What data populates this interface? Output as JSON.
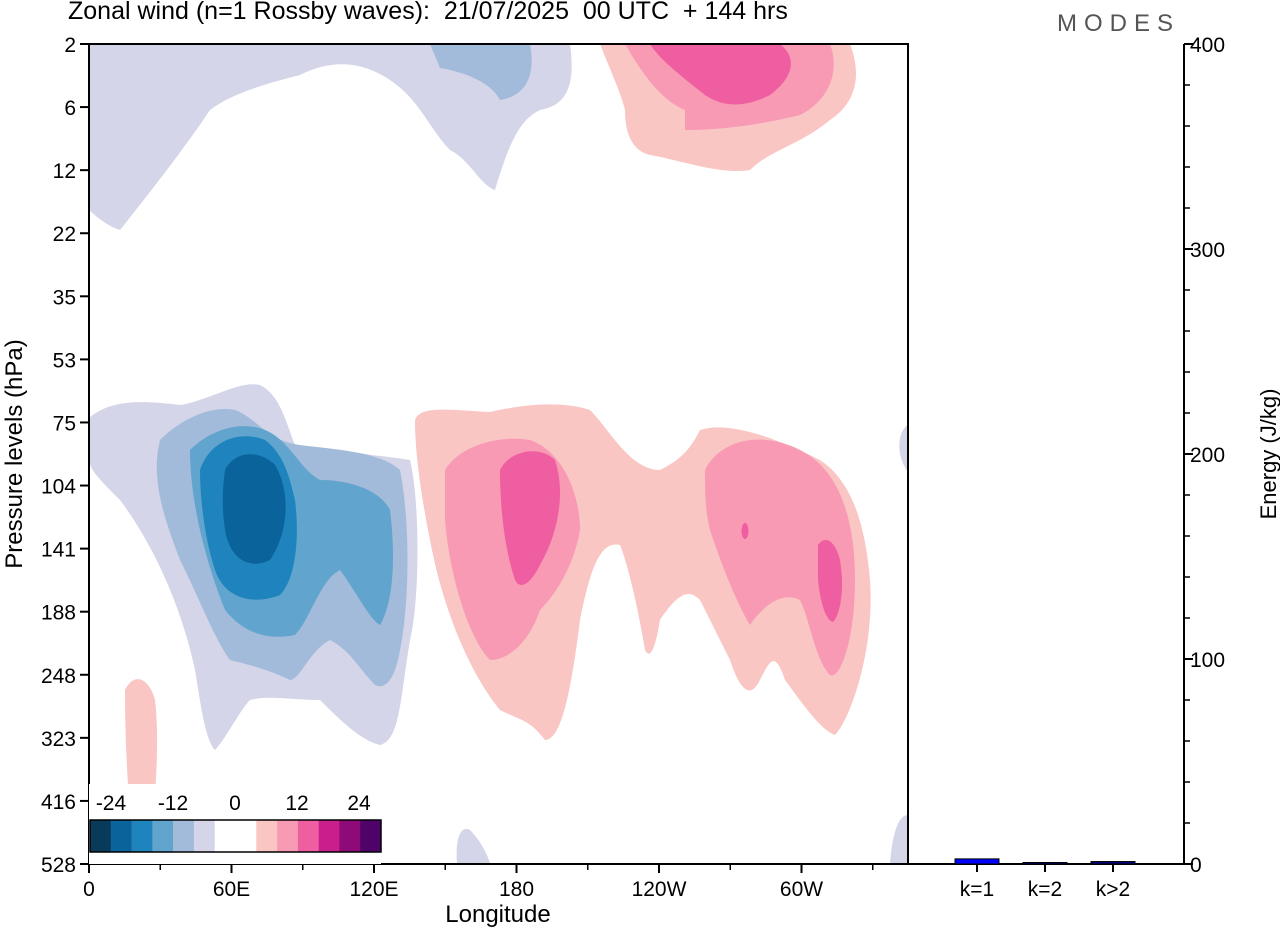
{
  "title": "Zonal wind (n=1 Rossby waves):  21/07/2025  00 UTC  + 144 hrs",
  "logo": "MODES",
  "chart_data": [
    {
      "type": "heatmap",
      "subtype": "filled-contour",
      "title": "Zonal wind (n=1 Rossby waves):  21/07/2025  00 UTC  + 144 hrs",
      "xlabel": "Longitude",
      "ylabel": "Pressure levels (hPa)",
      "x_ticks": [
        "0",
        "60E",
        "120E",
        "180",
        "120W",
        "60W"
      ],
      "y_ticks": [
        "2",
        "6",
        "12",
        "22",
        "35",
        "53",
        "75",
        "104",
        "141",
        "188",
        "248",
        "323",
        "416",
        "528"
      ],
      "colorbar": {
        "tick_labels": [
          "-24",
          "-12",
          "0",
          "12",
          "24"
        ],
        "levels": [
          -28,
          -24,
          -20,
          -16,
          -12,
          -8,
          -4,
          0,
          4,
          8,
          12,
          16,
          20,
          24,
          28
        ],
        "colors": [
          "#083a5a",
          "#0b639b",
          "#1f84bd",
          "#61a4cd",
          "#a3bbdb",
          "#d4d5e8",
          "#ffffff",
          "#ffffff",
          "#f9c6c3",
          "#f89ab4",
          "#ef5ea0",
          "#c91f8c",
          "#8f0a79",
          "#4f0368"
        ],
        "placement": "bottom-left"
      },
      "features": [
        {
          "name": "easterly core",
          "longitude": "~65E",
          "pressure": "104-141 hPa",
          "min_value": -20
        },
        {
          "name": "westerly core",
          "longitude": "~180-170W",
          "pressure": "104-141 hPa",
          "max_value": 12
        },
        {
          "name": "westerly core",
          "longitude": "~50W-30W",
          "pressure": "104-188 hPa",
          "max_value": 12
        },
        {
          "name": "upper westerly",
          "longitude": "~150W-100W",
          "pressure": "2-6 hPa",
          "max_value": 12
        },
        {
          "name": "upper easterly",
          "longitude": "0-160E",
          "pressure": "2-22 hPa",
          "min_value": -8
        }
      ]
    },
    {
      "type": "bar",
      "categories": [
        "k=1",
        "k=2",
        "k>2"
      ],
      "values": [
        2.5,
        0.5,
        1.2
      ],
      "ylabel": "Energy (J/kg)",
      "ylim": [
        0,
        400
      ],
      "y_ticks": [
        "0",
        "100",
        "200",
        "300",
        "400"
      ],
      "bar_colors": [
        "#0000ff",
        "#000080",
        "#000080"
      ]
    }
  ]
}
